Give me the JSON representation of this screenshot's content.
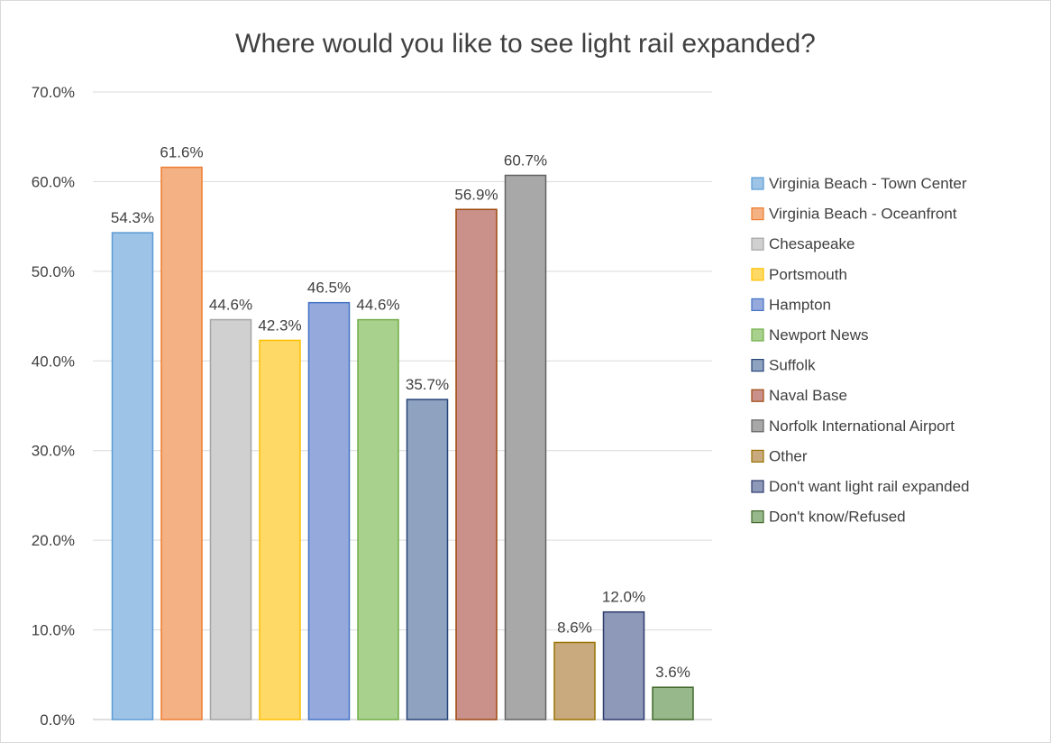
{
  "chart_data": {
    "type": "bar",
    "title": "Where would you like to see light rail expanded?",
    "xlabel": "",
    "ylabel": "",
    "ylim": [
      0,
      70
    ],
    "yticks": [
      "0.0%",
      "10.0%",
      "20.0%",
      "30.0%",
      "40.0%",
      "50.0%",
      "60.0%",
      "70.0%"
    ],
    "grid": true,
    "legend_position": "right",
    "series": [
      {
        "name": "Virginia Beach - Town Center",
        "value": 54.3,
        "label": "54.3%",
        "color": "#9dc3e6",
        "edge": "#5b9bd5"
      },
      {
        "name": "Virginia Beach - Oceanfront",
        "value": 61.6,
        "label": "61.6%",
        "color": "#f4b183",
        "edge": "#ed7d31"
      },
      {
        "name": "Chesapeake",
        "value": 44.6,
        "label": "44.6%",
        "color": "#d0d0d0",
        "edge": "#a5a5a5"
      },
      {
        "name": "Portsmouth",
        "value": 42.3,
        "label": "42.3%",
        "color": "#ffd966",
        "edge": "#ffc000"
      },
      {
        "name": "Hampton",
        "value": 46.5,
        "label": "46.5%",
        "color": "#95a9dd",
        "edge": "#4472c4"
      },
      {
        "name": "Newport News",
        "value": 44.6,
        "label": "44.6%",
        "color": "#a9d18e",
        "edge": "#70ad47"
      },
      {
        "name": "Suffolk",
        "value": 35.7,
        "label": "35.7%",
        "color": "#8fa3c0",
        "edge": "#264478"
      },
      {
        "name": "Naval Base",
        "value": 56.9,
        "label": "56.9%",
        "color": "#c9918a",
        "edge": "#9e480e"
      },
      {
        "name": "Norfolk International Airport",
        "value": 60.7,
        "label": "60.7%",
        "color": "#a8a8a8",
        "edge": "#636363"
      },
      {
        "name": "Other",
        "value": 8.6,
        "label": "8.6%",
        "color": "#c9aa7e",
        "edge": "#997300"
      },
      {
        "name": "Don't want light rail expanded",
        "value": 12.0,
        "label": "12.0%",
        "color": "#8e98b8",
        "edge": "#2e3b6e"
      },
      {
        "name": "Don't know/Refused",
        "value": 3.6,
        "label": "3.6%",
        "color": "#97b88a",
        "edge": "#43682b"
      }
    ]
  }
}
